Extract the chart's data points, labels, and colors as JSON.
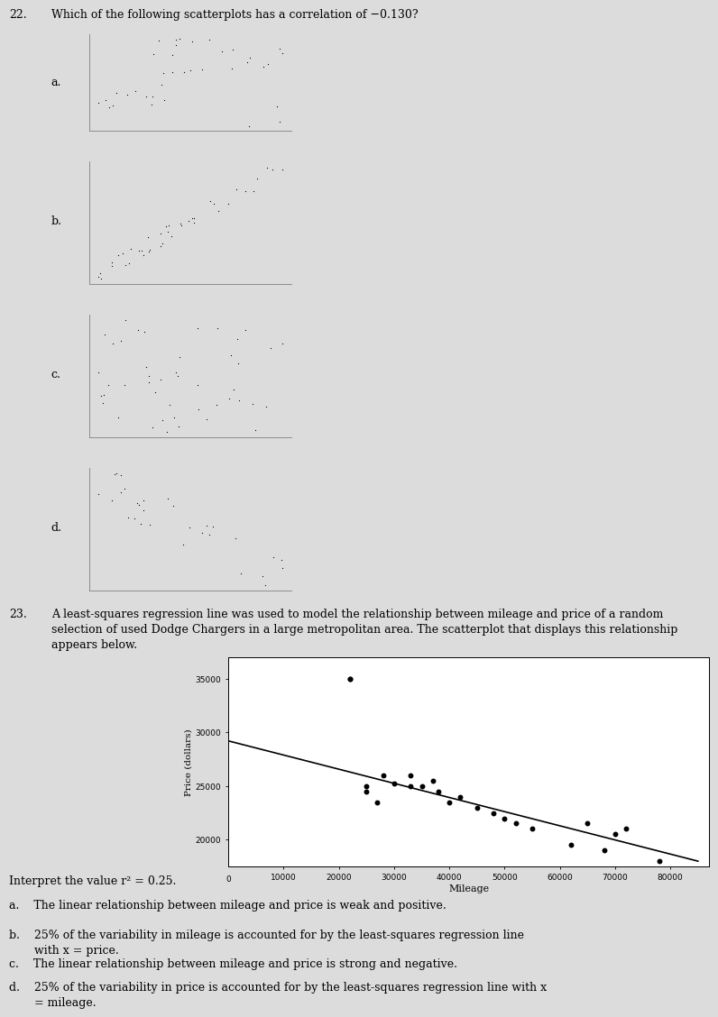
{
  "background_color": "#dcdcdc",
  "q22_label": "22.",
  "q22_text": "Which of the following scatterplots has a correlation of −0.130?",
  "q23_num": "23.",
  "q23_text": "A least-squares regression line was used to model the relationship between mileage and price of a random\nselection of used Dodge Chargers in a large metropolitan area. The scatterplot that displays this relationship\nappears below.",
  "interpret_text": "Interpret the value r² = 0.25.",
  "ans_a": "a.    The linear relationship between mileage and price is weak and positive.",
  "ans_b": "b.    25% of the variability in mileage is accounted for by the least-squares regression line\n       with x = price.",
  "ans_c": "c.    The linear relationship between mileage and price is strong and negative.",
  "ans_d": "d.    25% of the variability in price is accounted for by the least-squares regression line with x\n       = mileage.",
  "main_yticks": [
    20000,
    25000,
    30000,
    35000
  ],
  "main_xticks": [
    10000,
    20000,
    30000,
    40000,
    50000,
    60000,
    70000,
    80000
  ],
  "main_xlabel": "Mileage",
  "main_ylabel": "Price (dollars)"
}
